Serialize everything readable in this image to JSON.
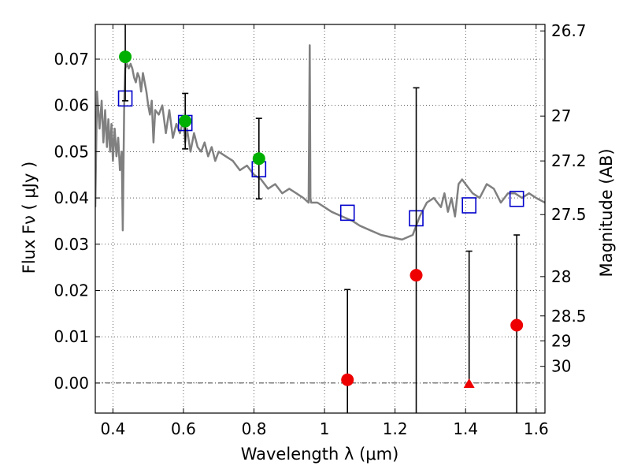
{
  "chart_data": {
    "type": "scatter",
    "xlabel": "Wavelength  λ (μm)",
    "ylabel": "Flux  Fν  ( μJy )",
    "y2label": "Magnitude (AB)",
    "xlim": [
      0.35,
      1.625
    ],
    "ylim": [
      -0.0065,
      0.0775
    ],
    "grid": true,
    "x_ticks": [
      0.4,
      0.6,
      0.8,
      1.0,
      1.2,
      1.4,
      1.6
    ],
    "x_tick_labels": [
      "0.4",
      "0.6",
      "0.8",
      "1",
      "1.2",
      "1.4",
      "1.6"
    ],
    "y_ticks": [
      0.0,
      0.01,
      0.02,
      0.03,
      0.04,
      0.05,
      0.06,
      0.07
    ],
    "y_tick_labels": [
      "0.00",
      "0.01",
      "0.02",
      "0.03",
      "0.04",
      "0.05",
      "0.06",
      "0.07"
    ],
    "y2_ticks": [
      {
        "label": "26.7",
        "flux": 0.0761
      },
      {
        "label": "27",
        "flux": 0.0577
      },
      {
        "label": "27.2",
        "flux": 0.048
      },
      {
        "label": "27.5",
        "flux": 0.0364
      },
      {
        "label": "28",
        "flux": 0.023
      },
      {
        "label": "28.5",
        "flux": 0.0145
      },
      {
        "label": "29",
        "flux": 0.0091
      },
      {
        "label": "30",
        "flux": 0.0036
      }
    ],
    "colors": {
      "sed": "#808080",
      "model": "#0000cc",
      "detection": "#00b000",
      "non_detection": "#ee0000",
      "errorbar": "#000000"
    },
    "sed_spectrum": {
      "x": [
        0.35,
        0.355,
        0.362,
        0.368,
        0.373,
        0.378,
        0.383,
        0.387,
        0.392,
        0.396,
        0.4,
        0.405,
        0.41,
        0.415,
        0.42,
        0.425,
        0.428,
        0.432,
        0.435,
        0.44,
        0.445,
        0.45,
        0.455,
        0.46,
        0.465,
        0.47,
        0.475,
        0.48,
        0.485,
        0.49,
        0.495,
        0.5,
        0.505,
        0.51,
        0.515,
        0.52,
        0.53,
        0.54,
        0.55,
        0.56,
        0.57,
        0.58,
        0.59,
        0.6,
        0.605,
        0.61,
        0.62,
        0.63,
        0.64,
        0.65,
        0.66,
        0.67,
        0.68,
        0.69,
        0.7,
        0.72,
        0.74,
        0.76,
        0.78,
        0.8,
        0.82,
        0.84,
        0.86,
        0.88,
        0.9,
        0.92,
        0.94,
        0.955,
        0.958,
        0.96,
        0.962,
        0.965,
        0.98,
        1.0,
        1.02,
        1.05,
        1.08,
        1.1,
        1.13,
        1.16,
        1.19,
        1.22,
        1.25,
        1.27,
        1.29,
        1.31,
        1.33,
        1.34,
        1.35,
        1.36,
        1.37,
        1.38,
        1.39,
        1.4,
        1.42,
        1.44,
        1.46,
        1.48,
        1.5,
        1.52,
        1.54,
        1.56,
        1.58,
        1.6,
        1.625
      ],
      "y": [
        0.038,
        0.063,
        0.055,
        0.061,
        0.052,
        0.059,
        0.051,
        0.057,
        0.05,
        0.056,
        0.048,
        0.055,
        0.049,
        0.053,
        0.046,
        0.05,
        0.033,
        0.06,
        0.068,
        0.069,
        0.068,
        0.069,
        0.068,
        0.066,
        0.065,
        0.067,
        0.066,
        0.063,
        0.067,
        0.065,
        0.063,
        0.06,
        0.058,
        0.061,
        0.052,
        0.059,
        0.058,
        0.06,
        0.054,
        0.059,
        0.053,
        0.056,
        0.054,
        0.057,
        0.052,
        0.055,
        0.05,
        0.054,
        0.051,
        0.05,
        0.052,
        0.049,
        0.051,
        0.048,
        0.05,
        0.049,
        0.048,
        0.046,
        0.047,
        0.045,
        0.044,
        0.042,
        0.043,
        0.041,
        0.042,
        0.041,
        0.04,
        0.039,
        0.073,
        0.04,
        0.039,
        0.039,
        0.039,
        0.038,
        0.037,
        0.036,
        0.035,
        0.034,
        0.033,
        0.032,
        0.0315,
        0.031,
        0.032,
        0.036,
        0.039,
        0.04,
        0.038,
        0.041,
        0.037,
        0.04,
        0.036,
        0.043,
        0.044,
        0.043,
        0.041,
        0.04,
        0.043,
        0.042,
        0.039,
        0.041,
        0.041,
        0.04,
        0.041,
        0.04,
        0.039
      ]
    },
    "model_points": {
      "x": [
        0.435,
        0.605,
        0.814,
        1.065,
        1.26,
        1.41,
        1.545
      ],
      "y": [
        0.0615,
        0.0562,
        0.0462,
        0.0368,
        0.0356,
        0.0384,
        0.0398
      ]
    },
    "observed_points": [
      {
        "x": 0.435,
        "y": 0.0705,
        "err_low": 0.0095,
        "err_high": 0.0095,
        "shape": "circle",
        "class": "detection"
      },
      {
        "x": 0.605,
        "y": 0.0566,
        "err_low": 0.006,
        "err_high": 0.006,
        "shape": "circle",
        "class": "detection"
      },
      {
        "x": 0.814,
        "y": 0.0485,
        "err_low": 0.0087,
        "err_high": 0.0087,
        "shape": "circle",
        "class": "detection"
      },
      {
        "x": 1.065,
        "y": 0.0007,
        "err_low": 0.0195,
        "err_high": 0.0195,
        "shape": "circle",
        "class": "non_detection"
      },
      {
        "x": 1.26,
        "y": 0.0233,
        "err_low": 0.0405,
        "err_high": 0.0405,
        "shape": "circle",
        "class": "non_detection"
      },
      {
        "x": 1.41,
        "y": -0.0002,
        "err_low": 0.0,
        "err_high": 0.0287,
        "shape": "triangle",
        "class": "non_detection"
      },
      {
        "x": 1.545,
        "y": 0.0125,
        "err_low": 0.0195,
        "err_high": 0.0195,
        "shape": "circle",
        "class": "non_detection"
      }
    ]
  }
}
